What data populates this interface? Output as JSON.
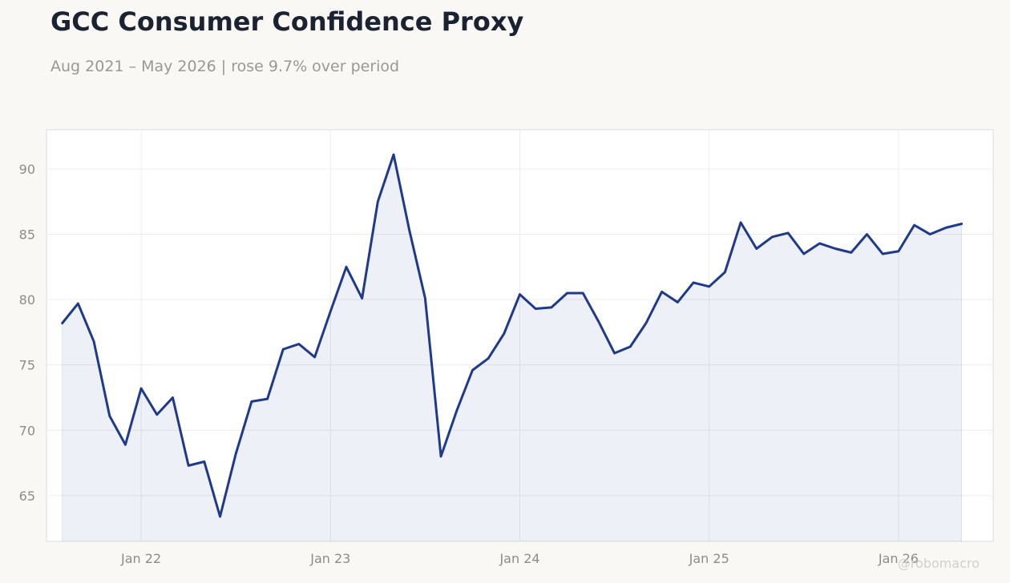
{
  "header": {
    "title": "GCC Consumer Confidence Proxy",
    "subtitle": "Aug 2021 – May 2026 | rose 9.7% over period"
  },
  "watermark": "@robomacro",
  "colors": {
    "line": "#1f3a8a",
    "fill": "#1f3a8a",
    "grid": "#ececec",
    "frame": "#dcdcdc",
    "plot_bg": "#ffffff",
    "page_bg": "#f9f8f5"
  },
  "chart_data": {
    "type": "area",
    "title": "GCC Consumer Confidence Proxy",
    "subtitle": "Aug 2021 – May 2026 | rose 9.7% over period",
    "xlabel": "",
    "ylabel": "",
    "grid": true,
    "legend": "none",
    "x_range": [
      "2021-07",
      "2026-07"
    ],
    "ylim": [
      61.5,
      93
    ],
    "x_ticks": [
      {
        "date": "2022-01",
        "label": "Jan 22"
      },
      {
        "date": "2023-01",
        "label": "Jan 23"
      },
      {
        "date": "2024-01",
        "label": "Jan 24"
      },
      {
        "date": "2025-01",
        "label": "Jan 25"
      },
      {
        "date": "2026-01",
        "label": "Jan 26"
      }
    ],
    "y_ticks": [
      65,
      70,
      75,
      80,
      85,
      90
    ],
    "series": [
      {
        "x": [
          "2021-08",
          "2021-09",
          "2021-10",
          "2021-11",
          "2021-12",
          "2022-01",
          "2022-02",
          "2022-03",
          "2022-04",
          "2022-05",
          "2022-06",
          "2022-07",
          "2022-08",
          "2022-09",
          "2022-10",
          "2022-11",
          "2022-12",
          "2023-01",
          "2023-02",
          "2023-03",
          "2023-04",
          "2023-05",
          "2023-06",
          "2023-07",
          "2023-08",
          "2023-09",
          "2023-10",
          "2023-11",
          "2023-12",
          "2024-01",
          "2024-02",
          "2024-03",
          "2024-04",
          "2024-05",
          "2024-06",
          "2024-07",
          "2024-08",
          "2024-09",
          "2024-10",
          "2024-11",
          "2024-12",
          "2025-01",
          "2025-02",
          "2025-03",
          "2025-04",
          "2025-05",
          "2025-06",
          "2025-07",
          "2025-08",
          "2025-09",
          "2025-10",
          "2025-11",
          "2025-12",
          "2026-01",
          "2026-02",
          "2026-03",
          "2026-04",
          "2026-05"
        ],
        "values": [
          78.2,
          79.7,
          76.8,
          71.1,
          68.9,
          73.2,
          71.2,
          72.5,
          67.3,
          67.6,
          63.4,
          68.2,
          72.2,
          72.4,
          76.2,
          76.6,
          75.6,
          79.1,
          82.5,
          80.1,
          87.5,
          91.1,
          85.3,
          80.1,
          68.0,
          71.5,
          74.6,
          75.5,
          77.4,
          80.4,
          79.3,
          79.4,
          80.5,
          80.5,
          78.3,
          75.9,
          76.4,
          78.2,
          80.6,
          79.8,
          81.3,
          81.0,
          82.1,
          85.9,
          83.9,
          84.8,
          85.1,
          83.5,
          84.3,
          83.9,
          83.6,
          85.0,
          83.5,
          83.7,
          85.7,
          85.0,
          85.5,
          85.8
        ]
      }
    ]
  }
}
